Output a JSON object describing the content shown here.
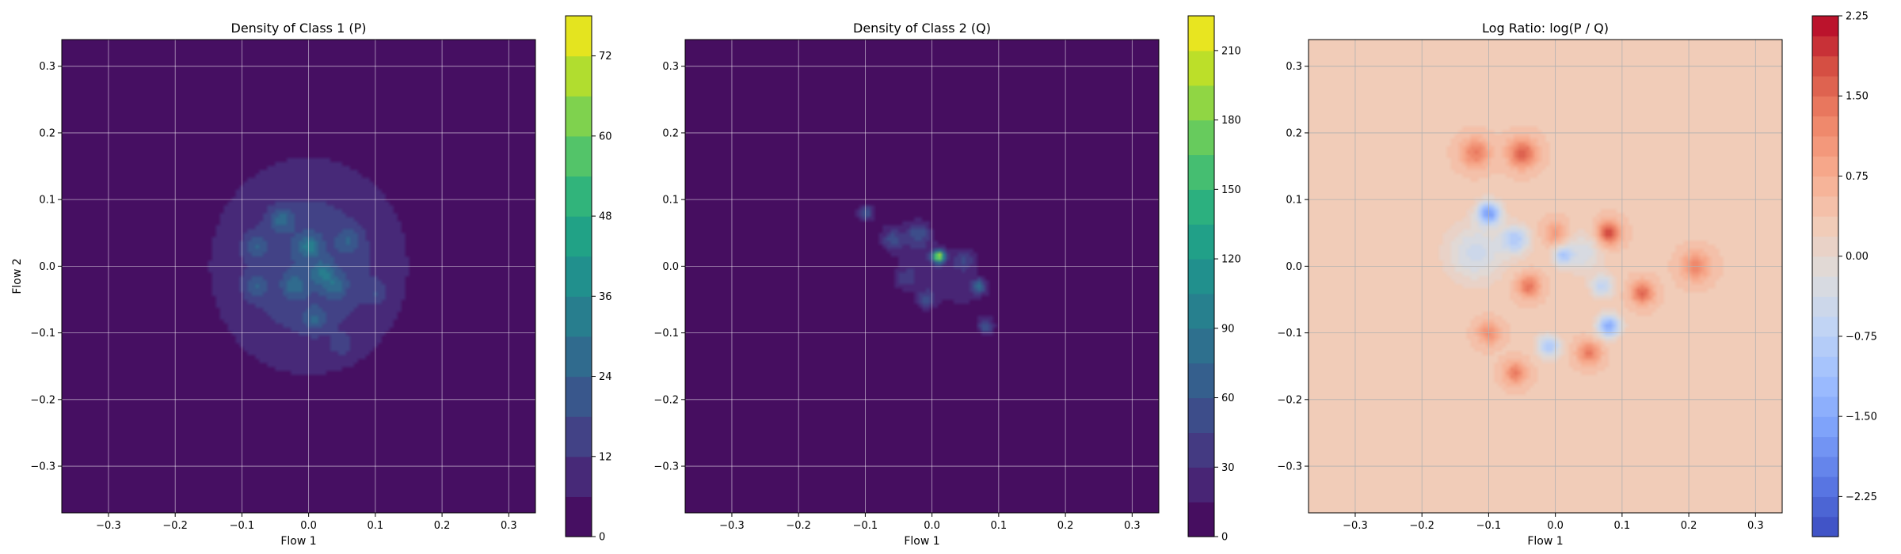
{
  "chart_data": [
    {
      "type": "heatmap",
      "title": "Density of Class 1 (P)",
      "xlabel": "Flow 1",
      "ylabel": "Flow 2",
      "xlim": [
        -0.37,
        0.34
      ],
      "ylim": [
        -0.37,
        0.34
      ],
      "xticks": [
        -0.3,
        -0.2,
        -0.1,
        0.0,
        0.1,
        0.2,
        0.3
      ],
      "xtick_labels": [
        "−0.3",
        "−0.2",
        "−0.1",
        "0.0",
        "0.1",
        "0.2",
        "0.3"
      ],
      "yticks": [
        -0.3,
        -0.2,
        -0.1,
        0.0,
        0.1,
        0.2,
        0.3
      ],
      "ytick_labels": [
        "−0.3",
        "−0.2",
        "−0.1",
        "0.0",
        "0.1",
        "0.2",
        "0.3"
      ],
      "grid": true,
      "colormap": "viridis",
      "colorbar": {
        "min": 0,
        "max": 78,
        "levels": 13,
        "ticks": [
          0,
          12,
          24,
          36,
          48,
          60,
          72
        ],
        "tick_labels": [
          "0",
          "12",
          "24",
          "36",
          "48",
          "60",
          "72"
        ],
        "colors": [
          "#440154",
          "#481a6c",
          "#472f7d",
          "#414487",
          "#39568c",
          "#31688e",
          "#2a788e",
          "#23888e",
          "#1f988b",
          "#22a884",
          "#35b779",
          "#54c568",
          "#7ad151",
          "#a5db36",
          "#d2e21b",
          "#fde725"
        ]
      },
      "blobs": [
        {
          "x": 0.0,
          "y": 0.0,
          "amp": 18,
          "sx": 0.1,
          "sy": 0.11
        },
        {
          "x": -0.04,
          "y": 0.07,
          "amp": 14,
          "sx": 0.012,
          "sy": 0.012
        },
        {
          "x": -0.08,
          "y": 0.03,
          "amp": 12,
          "sx": 0.012,
          "sy": 0.012
        },
        {
          "x": 0.0,
          "y": 0.03,
          "amp": 16,
          "sx": 0.012,
          "sy": 0.012
        },
        {
          "x": 0.02,
          "y": -0.01,
          "amp": 14,
          "sx": 0.012,
          "sy": 0.012
        },
        {
          "x": -0.08,
          "y": -0.03,
          "amp": 12,
          "sx": 0.012,
          "sy": 0.012
        },
        {
          "x": -0.02,
          "y": -0.03,
          "amp": 12,
          "sx": 0.012,
          "sy": 0.012
        },
        {
          "x": 0.04,
          "y": -0.03,
          "amp": 13,
          "sx": 0.012,
          "sy": 0.012
        },
        {
          "x": 0.06,
          "y": 0.04,
          "amp": 11,
          "sx": 0.012,
          "sy": 0.012
        },
        {
          "x": 0.01,
          "y": -0.08,
          "amp": 12,
          "sx": 0.012,
          "sy": 0.012
        },
        {
          "x": 0.1,
          "y": -0.04,
          "amp": 8,
          "sx": 0.012,
          "sy": 0.012
        },
        {
          "x": 0.05,
          "y": -0.12,
          "amp": 7,
          "sx": 0.012,
          "sy": 0.012
        }
      ]
    },
    {
      "type": "heatmap",
      "title": "Density of Class 2 (Q)",
      "xlabel": "Flow 1",
      "ylabel": "",
      "xlim": [
        -0.37,
        0.34
      ],
      "ylim": [
        -0.37,
        0.34
      ],
      "xticks": [
        -0.3,
        -0.2,
        -0.1,
        0.0,
        0.1,
        0.2,
        0.3
      ],
      "xtick_labels": [
        "−0.3",
        "−0.2",
        "−0.1",
        "0.0",
        "0.1",
        "0.2",
        "0.3"
      ],
      "yticks": [
        -0.3,
        -0.2,
        -0.1,
        0.0,
        0.1,
        0.2,
        0.3
      ],
      "ytick_labels": [
        "−0.3",
        "−0.2",
        "−0.1",
        "0.0",
        "0.1",
        "0.2",
        "0.3"
      ],
      "grid": true,
      "colormap": "viridis",
      "colorbar": {
        "min": 0,
        "max": 225,
        "levels": 15,
        "ticks": [
          0,
          30,
          60,
          90,
          120,
          150,
          180,
          210
        ],
        "tick_labels": [
          "0",
          "30",
          "60",
          "90",
          "120",
          "150",
          "180",
          "210"
        ],
        "colors": [
          "#440154",
          "#481a6c",
          "#472f7d",
          "#414487",
          "#39568c",
          "#31688e",
          "#2a788e",
          "#23888e",
          "#1f988b",
          "#22a884",
          "#35b779",
          "#54c568",
          "#7ad151",
          "#a5db36",
          "#d2e21b",
          "#fde725"
        ]
      },
      "blobs": [
        {
          "x": 0.0,
          "y": 0.0,
          "amp": 28,
          "sx": 0.055,
          "sy": 0.05,
          "rho": -0.75
        },
        {
          "x": -0.1,
          "y": 0.08,
          "amp": 55,
          "sx": 0.008,
          "sy": 0.008
        },
        {
          "x": -0.06,
          "y": 0.04,
          "amp": 40,
          "sx": 0.01,
          "sy": 0.01
        },
        {
          "x": 0.01,
          "y": 0.015,
          "amp": 190,
          "sx": 0.006,
          "sy": 0.006
        },
        {
          "x": -0.02,
          "y": 0.05,
          "amp": 45,
          "sx": 0.012,
          "sy": 0.012
        },
        {
          "x": 0.05,
          "y": 0.01,
          "amp": 40,
          "sx": 0.012,
          "sy": 0.012
        },
        {
          "x": 0.07,
          "y": -0.03,
          "amp": 70,
          "sx": 0.008,
          "sy": 0.008
        },
        {
          "x": -0.01,
          "y": -0.05,
          "amp": 50,
          "sx": 0.01,
          "sy": 0.01
        },
        {
          "x": 0.08,
          "y": -0.09,
          "amp": 55,
          "sx": 0.008,
          "sy": 0.008
        },
        {
          "x": -0.04,
          "y": -0.02,
          "amp": 35,
          "sx": 0.012,
          "sy": 0.012
        }
      ]
    },
    {
      "type": "heatmap",
      "title": "Log Ratio: log(P / Q)",
      "xlabel": "Flow 1",
      "ylabel": "",
      "xlim": [
        -0.37,
        0.34
      ],
      "ylim": [
        -0.37,
        0.34
      ],
      "xticks": [
        -0.3,
        -0.2,
        -0.1,
        0.0,
        0.1,
        0.2,
        0.3
      ],
      "xtick_labels": [
        "−0.3",
        "−0.2",
        "−0.1",
        "0.0",
        "0.1",
        "0.2",
        "0.3"
      ],
      "yticks": [
        -0.3,
        -0.2,
        -0.1,
        0.0,
        0.1,
        0.2,
        0.3
      ],
      "ytick_labels": [
        "−0.3",
        "−0.2",
        "−0.1",
        "0.0",
        "0.1",
        "0.2",
        "0.3"
      ],
      "grid": true,
      "colormap": "coolwarm",
      "colorbar": {
        "min": -2.625,
        "max": 2.25,
        "levels": 26,
        "ticks": [
          -2.25,
          -1.5,
          -0.75,
          0.0,
          0.75,
          1.5,
          2.25
        ],
        "tick_labels": [
          "−2.25",
          "−1.50",
          "−0.75",
          "0.00",
          "0.75",
          "1.50",
          "2.25"
        ],
        "colors": [
          "#3b4cc0",
          "#5977e3",
          "#7b9ff9",
          "#9ebeff",
          "#c0d4f5",
          "#dddcdc",
          "#f2cbb7",
          "#f7ac8e",
          "#ee8468",
          "#d65244",
          "#b40426"
        ]
      },
      "base": 0.35,
      "blobs": [
        {
          "x": -0.1,
          "y": 0.08,
          "amp": -2.0,
          "sx": 0.012,
          "sy": 0.012
        },
        {
          "x": -0.06,
          "y": 0.04,
          "amp": -1.2,
          "sx": 0.015,
          "sy": 0.015
        },
        {
          "x": 0.01,
          "y": 0.015,
          "amp": -1.1,
          "sx": 0.01,
          "sy": 0.01
        },
        {
          "x": 0.08,
          "y": -0.09,
          "amp": -1.8,
          "sx": 0.012,
          "sy": 0.012
        },
        {
          "x": 0.07,
          "y": -0.03,
          "amp": -1.0,
          "sx": 0.012,
          "sy": 0.012
        },
        {
          "x": -0.01,
          "y": -0.12,
          "amp": -1.3,
          "sx": 0.012,
          "sy": 0.012
        },
        {
          "x": -0.12,
          "y": 0.02,
          "amp": -0.8,
          "sx": 0.03,
          "sy": 0.03
        },
        {
          "x": 0.04,
          "y": 0.02,
          "amp": -0.7,
          "sx": 0.02,
          "sy": 0.02
        },
        {
          "x": 0.08,
          "y": 0.05,
          "amp": 1.5,
          "sx": 0.012,
          "sy": 0.012
        },
        {
          "x": -0.05,
          "y": 0.17,
          "amp": 1.3,
          "sx": 0.015,
          "sy": 0.015
        },
        {
          "x": -0.12,
          "y": 0.17,
          "amp": 1.0,
          "sx": 0.015,
          "sy": 0.015
        },
        {
          "x": 0.13,
          "y": -0.04,
          "amp": 1.2,
          "sx": 0.012,
          "sy": 0.012
        },
        {
          "x": -0.04,
          "y": -0.03,
          "amp": 1.1,
          "sx": 0.012,
          "sy": 0.012
        },
        {
          "x": -0.06,
          "y": -0.16,
          "amp": 1.0,
          "sx": 0.012,
          "sy": 0.012
        },
        {
          "x": 0.05,
          "y": -0.13,
          "amp": 1.0,
          "sx": 0.012,
          "sy": 0.012
        },
        {
          "x": 0.21,
          "y": 0.0,
          "amp": 0.9,
          "sx": 0.015,
          "sy": 0.015
        },
        {
          "x": -0.1,
          "y": -0.1,
          "amp": 0.8,
          "sx": 0.012,
          "sy": 0.012
        },
        {
          "x": 0.0,
          "y": 0.05,
          "amp": 0.7,
          "sx": 0.012,
          "sy": 0.012
        }
      ]
    }
  ]
}
